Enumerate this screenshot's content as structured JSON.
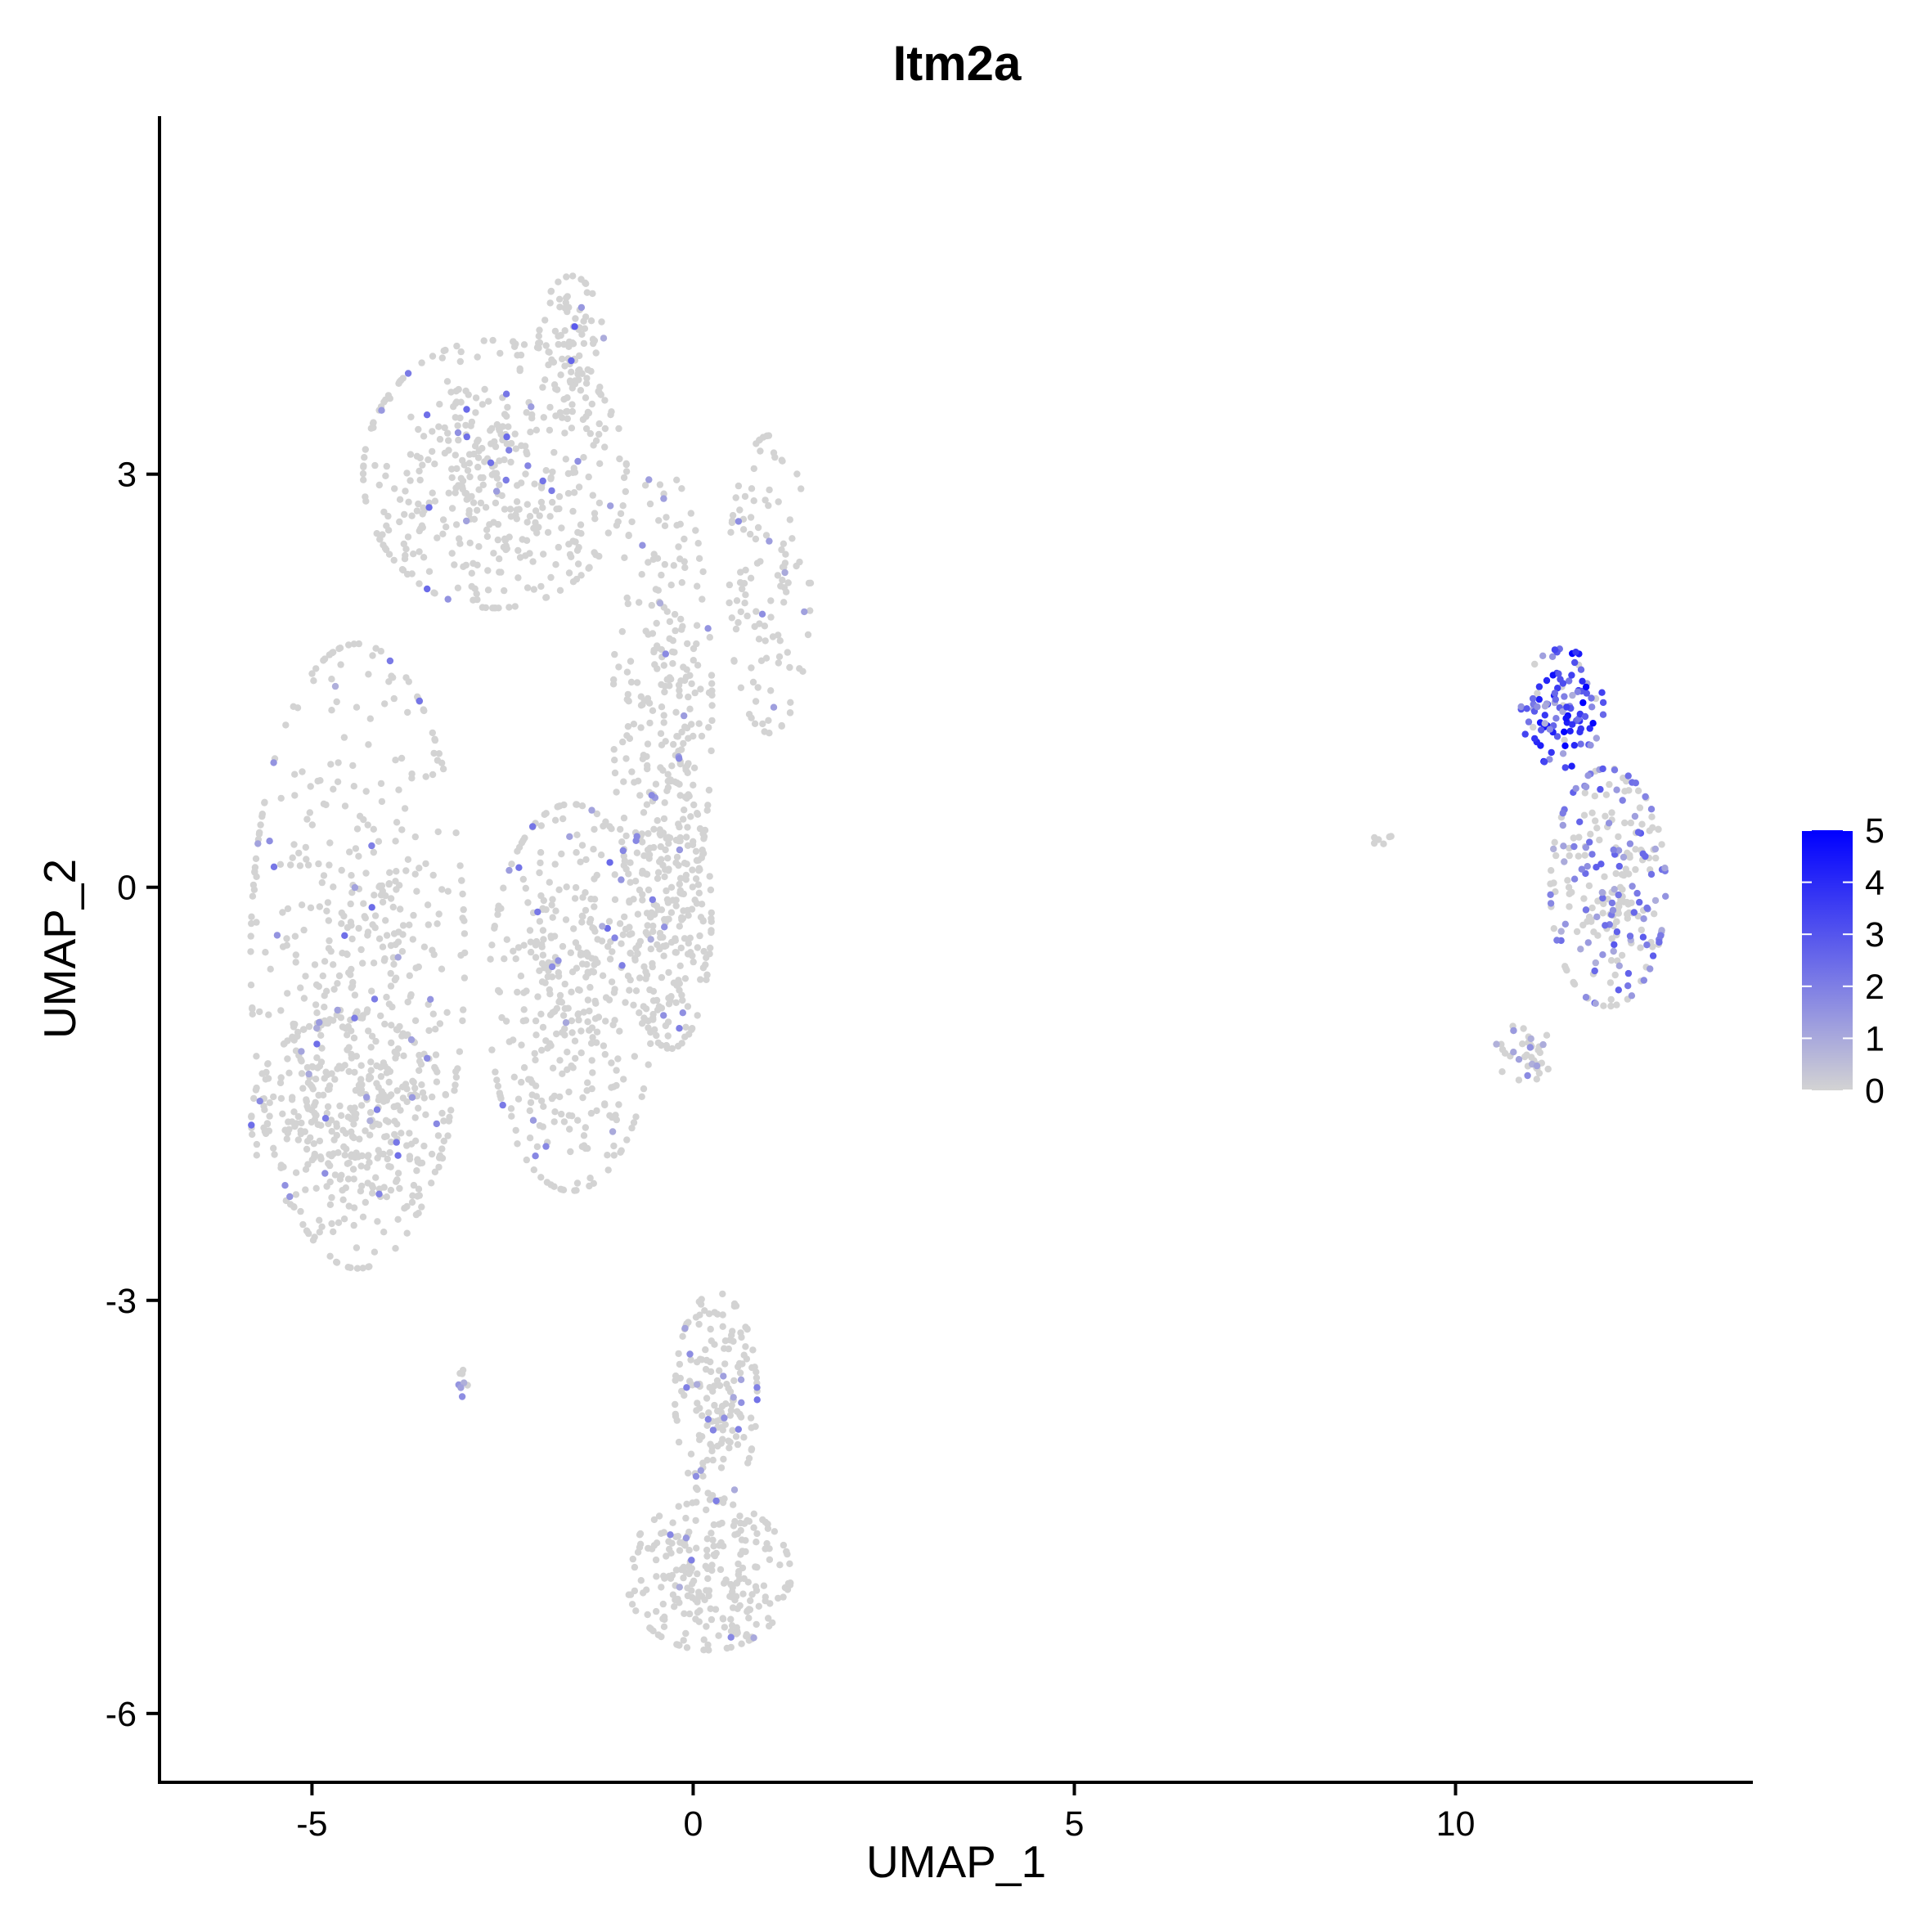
{
  "chart_data": {
    "type": "scatter",
    "title": "Itm2a",
    "xlabel": "UMAP_1",
    "ylabel": "UMAP_2",
    "xlim": [
      -7.0,
      13.9
    ],
    "ylim": [
      -6.5,
      5.6
    ],
    "x_ticks": [
      -5,
      0,
      5,
      10
    ],
    "x_tick_labels": [
      "-5",
      "0",
      "5",
      "10"
    ],
    "y_ticks": [
      -6,
      -3,
      0,
      3
    ],
    "y_tick_labels": [
      "-6",
      "-3",
      "0",
      "3"
    ],
    "grid": false,
    "legend": {
      "title": "",
      "placement": "right",
      "min": 0,
      "max": 5,
      "ticks": [
        0,
        1,
        2,
        3,
        4,
        5
      ],
      "tick_labels": [
        "0",
        "1",
        "2",
        "3",
        "4",
        "5"
      ],
      "low_color": "#d3d3d3",
      "high_color": "#0000ff"
    },
    "clusters": [
      {
        "name": "left-large-outer",
        "cx": -4.4,
        "cy": -0.5,
        "rx": 1.3,
        "ry": 2.1,
        "n": 500,
        "expr_frac": 0.05,
        "expr_max": 2.5
      },
      {
        "name": "left-large-top",
        "cx": -2.6,
        "cy": 3.0,
        "rx": 1.6,
        "ry": 0.9,
        "n": 450,
        "expr_frac": 0.05,
        "expr_max": 2.5
      },
      {
        "name": "left-large-peak",
        "cx": -1.6,
        "cy": 3.9,
        "rx": 0.4,
        "ry": 0.5,
        "n": 90,
        "expr_frac": 0.07,
        "expr_max": 3
      },
      {
        "name": "left-large-mid",
        "cx": -1.6,
        "cy": -0.8,
        "rx": 1.0,
        "ry": 1.3,
        "n": 400,
        "expr_frac": 0.06,
        "expr_max": 2.5
      },
      {
        "name": "left-large-right",
        "cx": -0.4,
        "cy": 1.3,
        "rx": 0.6,
        "ry": 1.6,
        "n": 260,
        "expr_frac": 0.04,
        "expr_max": 2
      },
      {
        "name": "left-large-bottom",
        "cx": -4.5,
        "cy": -1.7,
        "rx": 1.2,
        "ry": 0.7,
        "n": 300,
        "expr_frac": 0.05,
        "expr_max": 2.5
      },
      {
        "name": "left-large-inner",
        "cx": -0.3,
        "cy": -0.2,
        "rx": 0.5,
        "ry": 0.9,
        "n": 220,
        "expr_frac": 0.04,
        "expr_max": 2
      },
      {
        "name": "left-arm",
        "cx": 1.0,
        "cy": 2.2,
        "rx": 0.5,
        "ry": 1.0,
        "n": 120,
        "expr_frac": 0.05,
        "expr_max": 2
      },
      {
        "name": "bottom-cluster-upper",
        "cx": 0.3,
        "cy": -3.7,
        "rx": 0.5,
        "ry": 0.7,
        "n": 180,
        "expr_frac": 0.06,
        "expr_max": 2.5
      },
      {
        "name": "bottom-cluster-lower",
        "cx": 0.2,
        "cy": -5.0,
        "rx": 1.0,
        "ry": 0.5,
        "n": 260,
        "expr_frac": 0.04,
        "expr_max": 2
      },
      {
        "name": "right-cluster-top",
        "cx": 11.4,
        "cy": 1.3,
        "rx": 0.5,
        "ry": 0.4,
        "n": 110,
        "expr_frac": 0.9,
        "expr_max": 5
      },
      {
        "name": "right-cluster-body",
        "cx": 12.0,
        "cy": 0.0,
        "rx": 0.7,
        "ry": 0.8,
        "n": 260,
        "expr_frac": 0.4,
        "expr_max": 3
      },
      {
        "name": "right-cluster-tail",
        "cx": 10.9,
        "cy": -1.2,
        "rx": 0.35,
        "ry": 0.2,
        "n": 40,
        "expr_frac": 0.15,
        "expr_max": 2
      },
      {
        "name": "isolated-small",
        "cx": -3.0,
        "cy": -3.6,
        "rx": 0.07,
        "ry": 0.1,
        "n": 8,
        "expr_frac": 0.4,
        "expr_max": 2
      },
      {
        "name": "isolated-right",
        "cx": 9.0,
        "cy": 0.35,
        "rx": 0.15,
        "ry": 0.06,
        "n": 6,
        "expr_frac": 0.0,
        "expr_max": 0
      }
    ]
  }
}
